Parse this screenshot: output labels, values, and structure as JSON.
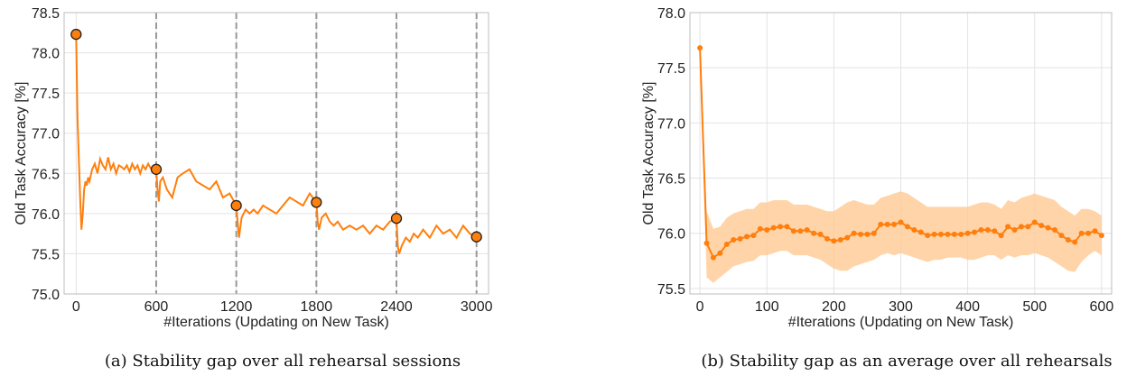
{
  "chart_data": [
    {
      "type": "line",
      "caption": "(a) Stability gap over all rehearsal sessions",
      "xlabel": "#Iterations (Updating on New Task)",
      "ylabel": "Old Task Accuracy [%]",
      "xlim": [
        -90,
        3090
      ],
      "ylim": [
        75.0,
        78.5
      ],
      "x_ticks": [
        0,
        600,
        1200,
        1800,
        2400,
        3000
      ],
      "y_ticks": [
        75.0,
        75.5,
        76.0,
        76.5,
        77.0,
        77.5,
        78.0,
        78.5
      ],
      "grid": true,
      "color": "#ff7f0e",
      "vlines": [
        600,
        1200,
        1800,
        2400,
        3000
      ],
      "series": [
        {
          "x": [
            0,
            10,
            20,
            30,
            40,
            50,
            60,
            70,
            80,
            90,
            100,
            120,
            140,
            160,
            180,
            200,
            220,
            240,
            260,
            280,
            300,
            320,
            340,
            360,
            380,
            400,
            420,
            440,
            460,
            480,
            500,
            520,
            540,
            560,
            580,
            600,
            610,
            620,
            630,
            650,
            680,
            720,
            760,
            800,
            850,
            900,
            950,
            1000,
            1050,
            1100,
            1150,
            1200,
            1210,
            1220,
            1240,
            1270,
            1300,
            1330,
            1360,
            1400,
            1450,
            1500,
            1550,
            1600,
            1650,
            1700,
            1750,
            1800,
            1810,
            1820,
            1840,
            1870,
            1900,
            1930,
            1960,
            2000,
            2050,
            2100,
            2150,
            2200,
            2250,
            2300,
            2350,
            2400,
            2410,
            2420,
            2440,
            2470,
            2500,
            2530,
            2560,
            2600,
            2650,
            2700,
            2750,
            2800,
            2850,
            2900,
            2950,
            3000
          ],
          "y": [
            78.23,
            77.2,
            76.7,
            76.2,
            75.8,
            76.0,
            76.3,
            76.4,
            76.35,
            76.45,
            76.4,
            76.55,
            76.62,
            76.5,
            76.68,
            76.6,
            76.55,
            76.7,
            76.55,
            76.62,
            76.5,
            76.6,
            76.58,
            76.55,
            76.6,
            76.52,
            76.62,
            76.55,
            76.6,
            76.5,
            76.6,
            76.55,
            76.62,
            76.56,
            76.55,
            76.55,
            76.3,
            76.15,
            76.4,
            76.45,
            76.3,
            76.2,
            76.45,
            76.5,
            76.55,
            76.4,
            76.35,
            76.3,
            76.4,
            76.2,
            76.25,
            76.1,
            75.9,
            75.7,
            75.95,
            76.05,
            76.0,
            76.05,
            76.0,
            76.1,
            76.05,
            76.0,
            76.1,
            76.2,
            76.15,
            76.1,
            76.25,
            76.14,
            75.9,
            75.8,
            75.95,
            76.0,
            75.9,
            75.85,
            75.9,
            75.8,
            75.85,
            75.8,
            75.85,
            75.75,
            75.85,
            75.8,
            75.9,
            75.94,
            75.6,
            75.5,
            75.6,
            75.7,
            75.65,
            75.75,
            75.7,
            75.8,
            75.7,
            75.85,
            75.75,
            75.8,
            75.7,
            75.85,
            75.75,
            75.71
          ]
        }
      ],
      "markers": [
        {
          "x": 0,
          "y": 78.23
        },
        {
          "x": 600,
          "y": 76.55
        },
        {
          "x": 1200,
          "y": 76.1
        },
        {
          "x": 1800,
          "y": 76.14
        },
        {
          "x": 2400,
          "y": 75.94
        },
        {
          "x": 3000,
          "y": 75.71
        }
      ]
    },
    {
      "type": "line",
      "caption": "(b) Stability gap as an average over all rehearsals",
      "xlabel": "#Iterations (Updating on New Task)",
      "ylabel": "Old Task Accuracy [%]",
      "xlim": [
        -15,
        615
      ],
      "ylim": [
        75.45,
        78.0
      ],
      "x_ticks": [
        0,
        100,
        200,
        300,
        400,
        500,
        600
      ],
      "y_ticks": [
        75.5,
        76.0,
        76.5,
        77.0,
        77.5,
        78.0
      ],
      "grid": true,
      "color": "#ff7f0e",
      "band_color": "#ffcc99",
      "series": [
        {
          "x": [
            0,
            10,
            20,
            30,
            40,
            50,
            60,
            70,
            80,
            90,
            100,
            110,
            120,
            130,
            140,
            150,
            160,
            170,
            180,
            190,
            200,
            210,
            220,
            230,
            240,
            250,
            260,
            270,
            280,
            290,
            300,
            310,
            320,
            330,
            340,
            350,
            360,
            370,
            380,
            390,
            400,
            410,
            420,
            430,
            440,
            450,
            460,
            470,
            480,
            490,
            500,
            510,
            520,
            530,
            540,
            550,
            560,
            570,
            580,
            590,
            600
          ],
          "y": [
            77.68,
            75.91,
            75.78,
            75.82,
            75.9,
            75.94,
            75.95,
            75.97,
            75.98,
            76.04,
            76.03,
            76.05,
            76.06,
            76.06,
            76.02,
            76.02,
            76.03,
            76.0,
            75.99,
            75.95,
            75.93,
            75.94,
            75.96,
            76.0,
            75.99,
            75.99,
            76.0,
            76.08,
            76.08,
            76.08,
            76.1,
            76.06,
            76.03,
            76.01,
            75.98,
            75.99,
            75.99,
            75.99,
            75.99,
            75.99,
            76.0,
            76.01,
            76.03,
            76.03,
            76.02,
            75.98,
            76.06,
            76.03,
            76.06,
            76.06,
            76.1,
            76.07,
            76.05,
            76.03,
            75.98,
            75.94,
            75.92,
            76.0,
            76.0,
            76.02,
            75.98
          ],
          "lower": [
            77.68,
            75.6,
            75.55,
            75.6,
            75.65,
            75.7,
            75.72,
            75.74,
            75.75,
            75.8,
            75.8,
            75.82,
            75.84,
            75.84,
            75.8,
            75.8,
            75.8,
            75.78,
            75.76,
            75.72,
            75.68,
            75.66,
            75.66,
            75.7,
            75.72,
            75.74,
            75.76,
            75.8,
            75.82,
            75.8,
            75.82,
            75.8,
            75.78,
            75.76,
            75.74,
            75.76,
            75.76,
            75.78,
            75.78,
            75.78,
            75.76,
            75.76,
            75.78,
            75.8,
            75.8,
            75.76,
            75.8,
            75.78,
            75.8,
            75.8,
            75.82,
            75.8,
            75.78,
            75.74,
            75.7,
            75.66,
            75.65,
            75.74,
            75.8,
            75.84,
            75.8
          ],
          "upper": [
            77.68,
            76.2,
            76.04,
            76.06,
            76.14,
            76.18,
            76.2,
            76.22,
            76.22,
            76.28,
            76.28,
            76.3,
            76.3,
            76.3,
            76.26,
            76.26,
            76.26,
            76.24,
            76.22,
            76.2,
            76.2,
            76.24,
            76.28,
            76.3,
            76.28,
            76.26,
            76.26,
            76.32,
            76.34,
            76.36,
            76.38,
            76.36,
            76.32,
            76.28,
            76.24,
            76.24,
            76.24,
            76.24,
            76.24,
            76.24,
            76.24,
            76.26,
            76.28,
            76.28,
            76.26,
            76.22,
            76.3,
            76.28,
            76.32,
            76.34,
            76.36,
            76.34,
            76.32,
            76.3,
            76.24,
            76.2,
            76.16,
            76.22,
            76.22,
            76.2,
            76.16
          ]
        }
      ]
    }
  ]
}
